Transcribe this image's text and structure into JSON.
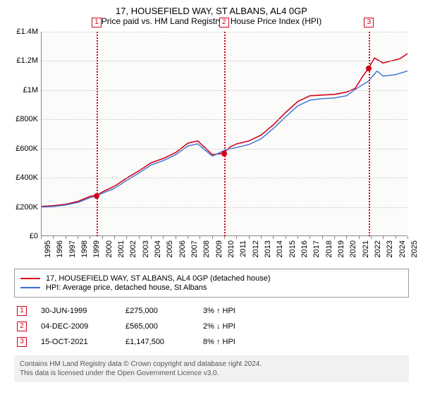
{
  "title": "17, HOUSEFIELD WAY, ST ALBANS, AL4 0GP",
  "subtitle": "Price paid vs. HM Land Registry's House Price Index (HPI)",
  "chart": {
    "type": "line",
    "background_color": "#fbfbfa",
    "grid_color": "#c8c8c8",
    "axis_color": "#888888",
    "xlim_years": [
      1995,
      2025
    ],
    "ylim": [
      0,
      1400000
    ],
    "y_ticks": [
      {
        "v": 0,
        "label": "£0"
      },
      {
        "v": 200000,
        "label": "£200K"
      },
      {
        "v": 400000,
        "label": "£400K"
      },
      {
        "v": 600000,
        "label": "£600K"
      },
      {
        "v": 800000,
        "label": "£800K"
      },
      {
        "v": 1000000,
        "label": "£1M"
      },
      {
        "v": 1200000,
        "label": "£1.2M"
      },
      {
        "v": 1400000,
        "label": "£1.4M"
      }
    ],
    "x_ticks": [
      1995,
      1996,
      1997,
      1998,
      1999,
      2000,
      2001,
      2002,
      2003,
      2004,
      2005,
      2006,
      2007,
      2008,
      2009,
      2010,
      2011,
      2012,
      2013,
      2014,
      2015,
      2016,
      2017,
      2018,
      2019,
      2020,
      2021,
      2022,
      2023,
      2024,
      2025
    ],
    "series": [
      {
        "name": "price_paid",
        "color": "#d4001a",
        "width": 1.6,
        "points": [
          [
            1995,
            200000
          ],
          [
            1996,
            205000
          ],
          [
            1997,
            215000
          ],
          [
            1998,
            235000
          ],
          [
            1999,
            270000
          ],
          [
            1999.5,
            275000
          ],
          [
            2000,
            300000
          ],
          [
            2001,
            340000
          ],
          [
            2002,
            395000
          ],
          [
            2003,
            445000
          ],
          [
            2004,
            500000
          ],
          [
            2005,
            530000
          ],
          [
            2006,
            570000
          ],
          [
            2007,
            635000
          ],
          [
            2007.8,
            650000
          ],
          [
            2008.5,
            595000
          ],
          [
            2009,
            555000
          ],
          [
            2009.9,
            565000
          ],
          [
            2010.5,
            610000
          ],
          [
            2011,
            630000
          ],
          [
            2012,
            650000
          ],
          [
            2013,
            690000
          ],
          [
            2014,
            760000
          ],
          [
            2015,
            845000
          ],
          [
            2016,
            920000
          ],
          [
            2017,
            960000
          ],
          [
            2018,
            965000
          ],
          [
            2019,
            970000
          ],
          [
            2020,
            985000
          ],
          [
            2020.7,
            1010000
          ],
          [
            2021.3,
            1090000
          ],
          [
            2021.8,
            1147500
          ],
          [
            2022.3,
            1220000
          ],
          [
            2023,
            1185000
          ],
          [
            2023.7,
            1200000
          ],
          [
            2024.4,
            1215000
          ],
          [
            2025,
            1250000
          ]
        ]
      },
      {
        "name": "hpi",
        "color": "#3a6fd8",
        "width": 1.4,
        "points": [
          [
            1995,
            195000
          ],
          [
            1996,
            200000
          ],
          [
            1997,
            210000
          ],
          [
            1998,
            228000
          ],
          [
            1999,
            260000
          ],
          [
            2000,
            290000
          ],
          [
            2001,
            325000
          ],
          [
            2002,
            380000
          ],
          [
            2003,
            430000
          ],
          [
            2004,
            485000
          ],
          [
            2005,
            515000
          ],
          [
            2006,
            555000
          ],
          [
            2007,
            615000
          ],
          [
            2007.8,
            630000
          ],
          [
            2008.5,
            580000
          ],
          [
            2009,
            545000
          ],
          [
            2010,
            585000
          ],
          [
            2011,
            605000
          ],
          [
            2012,
            625000
          ],
          [
            2013,
            665000
          ],
          [
            2014,
            735000
          ],
          [
            2015,
            815000
          ],
          [
            2016,
            890000
          ],
          [
            2017,
            930000
          ],
          [
            2018,
            940000
          ],
          [
            2019,
            945000
          ],
          [
            2020,
            960000
          ],
          [
            2021,
            1020000
          ],
          [
            2021.8,
            1060000
          ],
          [
            2022.5,
            1130000
          ],
          [
            2023,
            1095000
          ],
          [
            2024,
            1105000
          ],
          [
            2025,
            1130000
          ]
        ]
      }
    ],
    "markers": [
      {
        "num": "1",
        "year": 1999.5,
        "value": 275000,
        "color": "#d4001a"
      },
      {
        "num": "2",
        "year": 2009.93,
        "value": 565000,
        "color": "#d4001a"
      },
      {
        "num": "3",
        "year": 2021.79,
        "value": 1147500,
        "color": "#d4001a"
      }
    ]
  },
  "legend": {
    "items": [
      {
        "color": "#d4001a",
        "label": "17, HOUSEFIELD WAY, ST ALBANS, AL4 0GP (detached house)"
      },
      {
        "color": "#3a6fd8",
        "label": "HPI: Average price, detached house, St Albans"
      }
    ]
  },
  "events": [
    {
      "num": "1",
      "color": "#d4001a",
      "date": "30-JUN-1999",
      "price": "£275,000",
      "delta": "3% ↑ HPI"
    },
    {
      "num": "2",
      "color": "#d4001a",
      "date": "04-DEC-2009",
      "price": "£565,000",
      "delta": "2% ↓ HPI"
    },
    {
      "num": "3",
      "color": "#d4001a",
      "date": "15-OCT-2021",
      "price": "£1,147,500",
      "delta": "8% ↑ HPI"
    }
  ],
  "footer": {
    "line1": "Contains HM Land Registry data © Crown copyright and database right 2024.",
    "line2": "This data is licensed under the Open Government Licence v3.0."
  }
}
